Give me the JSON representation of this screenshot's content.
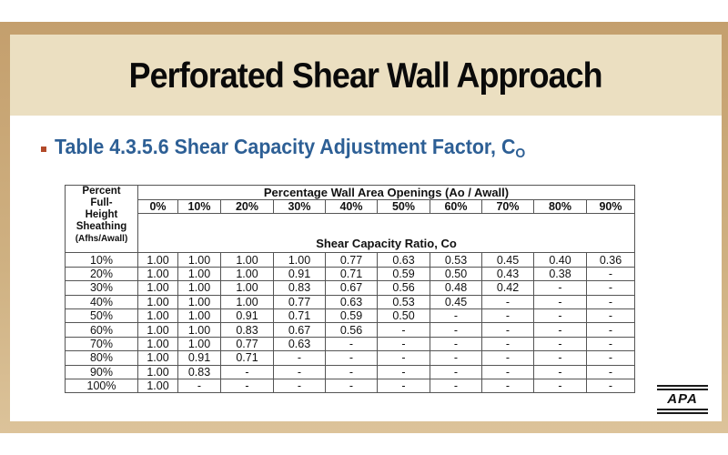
{
  "slide": {
    "title": "Perforated Shear Wall Approach",
    "bullet": {
      "text": "Table 4.3.5.6 Shear Capacity Adjustment Factor, C",
      "subscript": "O"
    },
    "colors": {
      "frame": "#c49f6d",
      "title_band": "#ebdfc1",
      "bullet_text": "#2d5f95",
      "bullet_marker": "#b24a2a"
    },
    "logo": {
      "text": "APA"
    }
  },
  "table": {
    "row_header": {
      "line1": "Percent",
      "line2": "Full-",
      "line3": "Height",
      "line4": "Sheathing",
      "line5": "(Afhs/Awall)"
    },
    "group_header": "Percentage Wall Area Openings (Ao / Awall)",
    "ratio_header": "Shear Capacity Ratio, Co",
    "columns": [
      "0%",
      "10%",
      "20%",
      "30%",
      "40%",
      "50%",
      "60%",
      "70%",
      "80%",
      "90%"
    ],
    "rows": [
      {
        "label": "10%",
        "values": [
          "1.00",
          "1.00",
          "1.00",
          "1.00",
          "0.77",
          "0.63",
          "0.53",
          "0.45",
          "0.40",
          "0.36"
        ]
      },
      {
        "label": "20%",
        "values": [
          "1.00",
          "1.00",
          "1.00",
          "0.91",
          "0.71",
          "0.59",
          "0.50",
          "0.43",
          "0.38",
          "-"
        ]
      },
      {
        "label": "30%",
        "values": [
          "1.00",
          "1.00",
          "1.00",
          "0.83",
          "0.67",
          "0.56",
          "0.48",
          "0.42",
          "-",
          "-"
        ]
      },
      {
        "label": "40%",
        "values": [
          "1.00",
          "1.00",
          "1.00",
          "0.77",
          "0.63",
          "0.53",
          "0.45",
          "-",
          "-",
          "-"
        ]
      },
      {
        "label": "50%",
        "values": [
          "1.00",
          "1.00",
          "0.91",
          "0.71",
          "0.59",
          "0.50",
          "-",
          "-",
          "-",
          "-"
        ]
      },
      {
        "label": "60%",
        "values": [
          "1.00",
          "1.00",
          "0.83",
          "0.67",
          "0.56",
          "-",
          "-",
          "-",
          "-",
          "-"
        ]
      },
      {
        "label": "70%",
        "values": [
          "1.00",
          "1.00",
          "0.77",
          "0.63",
          "-",
          "-",
          "-",
          "-",
          "-",
          "-"
        ]
      },
      {
        "label": "80%",
        "values": [
          "1.00",
          "0.91",
          "0.71",
          "-",
          "-",
          "-",
          "-",
          "-",
          "-",
          "-"
        ]
      },
      {
        "label": "90%",
        "values": [
          "1.00",
          "0.83",
          "-",
          "-",
          "-",
          "-",
          "-",
          "-",
          "-",
          "-"
        ]
      },
      {
        "label": "100%",
        "values": [
          "1.00",
          "-",
          "-",
          "-",
          "-",
          "-",
          "-",
          "-",
          "-",
          "-"
        ]
      }
    ]
  }
}
